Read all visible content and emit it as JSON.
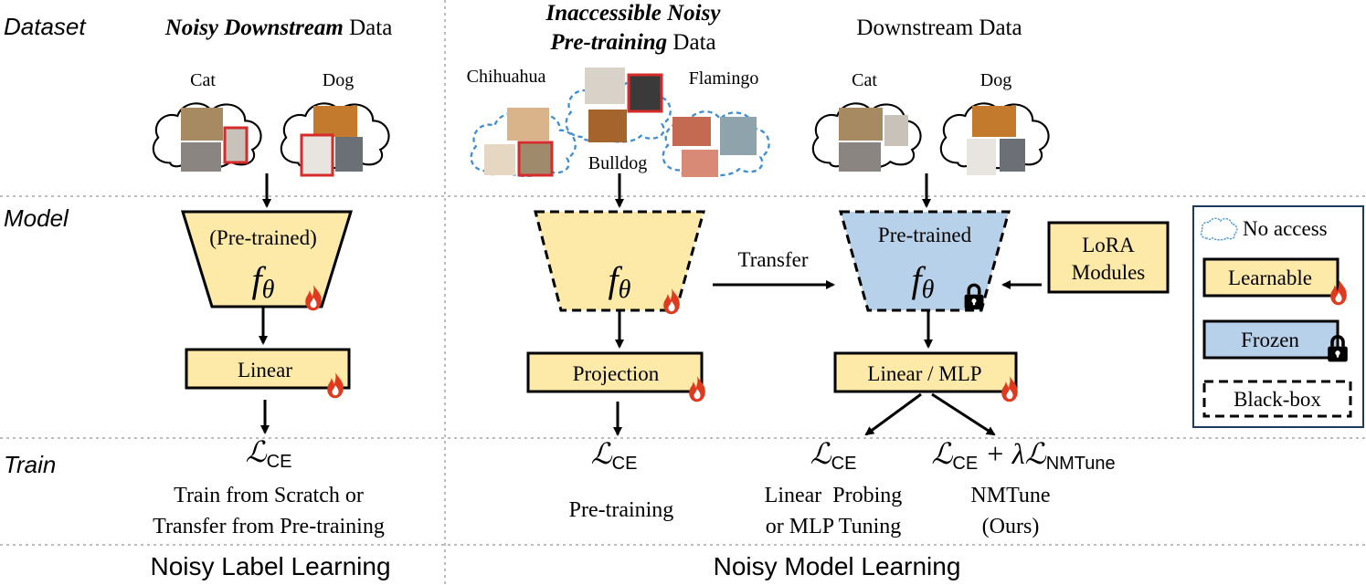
{
  "rows": {
    "dataset": "Dataset",
    "model": "Model",
    "train": "Train"
  },
  "left": {
    "title_bold": "Noisy Downstream",
    "title_rest": " Data",
    "cat": "Cat",
    "dog": "Dog",
    "model_line1": "(Pre-trained)",
    "f": "f",
    "theta": "θ",
    "head": "Linear",
    "loss_main": "ℒ",
    "loss_sub": "CE",
    "train_line1": "Train from Scratch or",
    "train_line2": "Transfer from Pre-training",
    "footer": "Noisy Label Learning"
  },
  "middle": {
    "title_line1": "Inaccessible Noisy",
    "title_line2_bold": "Pre-training",
    "title_line2_rest": " Data",
    "chihuahua": "Chihuahua",
    "flamingo": "Flamingo",
    "bulldog": "Bulldog",
    "head": "Projection",
    "loss_main": "ℒ",
    "loss_sub": "CE",
    "train_line1": "Pre-training",
    "transfer": "Transfer"
  },
  "right": {
    "title": "Downstream Data",
    "cat": "Cat",
    "dog": "Dog",
    "model_line1": "Pre-trained",
    "head": "Linear / MLP",
    "lora_line1": "LoRA",
    "lora_line2": "Modules",
    "loss1_main": "ℒ",
    "loss1_sub": "CE",
    "loss1_line1": "Linear  Probing",
    "loss1_line2": "or MLP Tuning",
    "loss2_a": "ℒ",
    "loss2_a_sub": "CE",
    "loss2_plus": " + λℒ",
    "loss2_b_sub": "NMTune",
    "loss2_line1": "NMTune",
    "loss2_line2": "(Ours)",
    "footer": "Noisy Model Learning"
  },
  "legend": {
    "no_access": "No access",
    "learnable": "Learnable",
    "frozen": "Frozen",
    "blackbox": "Black-box"
  },
  "colors": {
    "learnable_fill": "#fde9a8",
    "frozen_fill": "#b7d1ea",
    "cloud_dash": "#3f8fd0",
    "legend_border": "#1f3a5f",
    "flame": "#e03a1e",
    "noisy_border": "#d62b2b",
    "grid": "#bdbdbd"
  },
  "icons": {
    "flame": "flame-icon",
    "lock": "lock-icon",
    "cloud": "cloud-icon",
    "image": "image-thumbnail-icon"
  }
}
